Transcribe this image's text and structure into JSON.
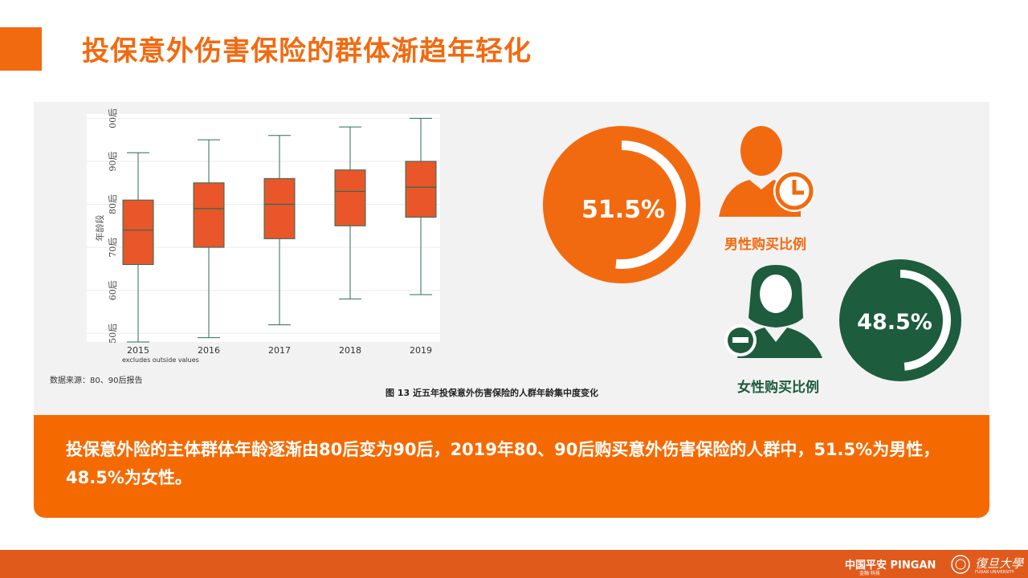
{
  "title": "投保意外伤害保险的群体渐趋年轻化",
  "chart_data": {
    "type": "box",
    "x": [
      "2015",
      "2016",
      "2017",
      "2018",
      "2019"
    ],
    "y_ticks": [
      "50后",
      "60后",
      "70后",
      "80后",
      "90后",
      "00后"
    ],
    "y_tick_values": [
      50,
      60,
      70,
      80,
      90,
      100
    ],
    "ylabel": "年龄段",
    "ylim": [
      48,
      101
    ],
    "note": "excludes outside values",
    "boxes": [
      {
        "min": 48,
        "q1": 66,
        "median": 74,
        "q3": 81,
        "max": 92
      },
      {
        "min": 49,
        "q1": 70,
        "median": 79,
        "q3": 85,
        "max": 95
      },
      {
        "min": 52,
        "q1": 72,
        "median": 80,
        "q3": 86,
        "max": 96
      },
      {
        "min": 58,
        "q1": 75,
        "median": 83,
        "q3": 88,
        "max": 98
      },
      {
        "min": 59,
        "q1": 77,
        "median": 84,
        "q3": 90,
        "max": 100
      }
    ],
    "box_color": "#e8562a",
    "whisker_color": "#2e6b57"
  },
  "source_note": "数据来源：80、90后报告",
  "figure_caption": "图 13  近五年投保意外伤害保险的人群年龄集中度变化",
  "male": {
    "percent": "51.5%",
    "value": 51.5,
    "label": "男性购买比例",
    "color": "#f26a10"
  },
  "female": {
    "percent": "48.5%",
    "value": 48.5,
    "label": "女性购买比例",
    "color": "#1d5c3c"
  },
  "summary": "投保意外险的主体群体年龄逐渐由80后变为90后，2019年80、90后购买意外伤害保险的人群中，51.5%为男性，48.5%为女性。",
  "footer": {
    "pingan": "中国平安 PINGAN",
    "pingan_sub": "金融·科技",
    "fudan": "復旦大學",
    "fudan_sub": "FUDAN UNIVERSITY"
  }
}
